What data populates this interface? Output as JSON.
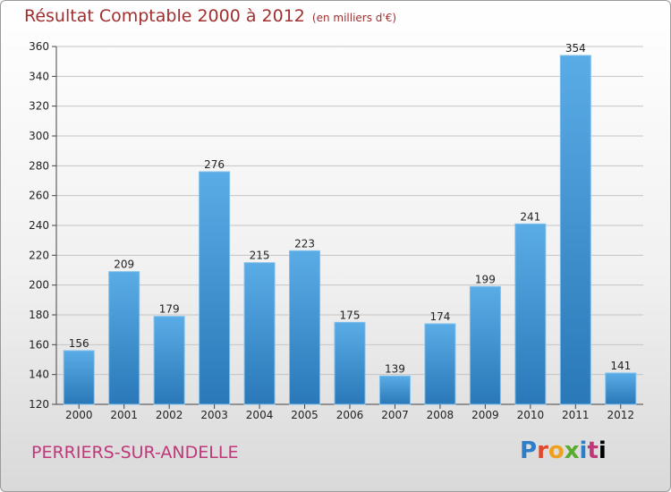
{
  "header": {
    "title": "Résultat Comptable 2000 à 2012",
    "unit": "(en milliers d'€)"
  },
  "footer": {
    "city": "PERRIERS-SUR-ANDELLE",
    "logo_letters": [
      "P",
      "r",
      "o",
      "x",
      "i",
      "t",
      "i"
    ]
  },
  "colors": {
    "bar_light": "#5aace6",
    "bar_dark": "#2a78b8",
    "title": "#a03030",
    "city": "#c0387a"
  },
  "chart_data": {
    "type": "bar",
    "title": "Résultat Comptable 2000 à 2012",
    "subtitle": "(en milliers d'€)",
    "categories": [
      "2000",
      "2001",
      "2002",
      "2003",
      "2004",
      "2005",
      "2006",
      "2007",
      "2008",
      "2009",
      "2010",
      "2011",
      "2012"
    ],
    "values": [
      156,
      209,
      179,
      276,
      215,
      223,
      175,
      139,
      174,
      199,
      241,
      354,
      141
    ],
    "ylim": [
      120,
      360
    ],
    "yticks": [
      120,
      140,
      160,
      180,
      200,
      220,
      240,
      260,
      280,
      300,
      320,
      340,
      360
    ],
    "grid": true,
    "data_labels": true
  }
}
